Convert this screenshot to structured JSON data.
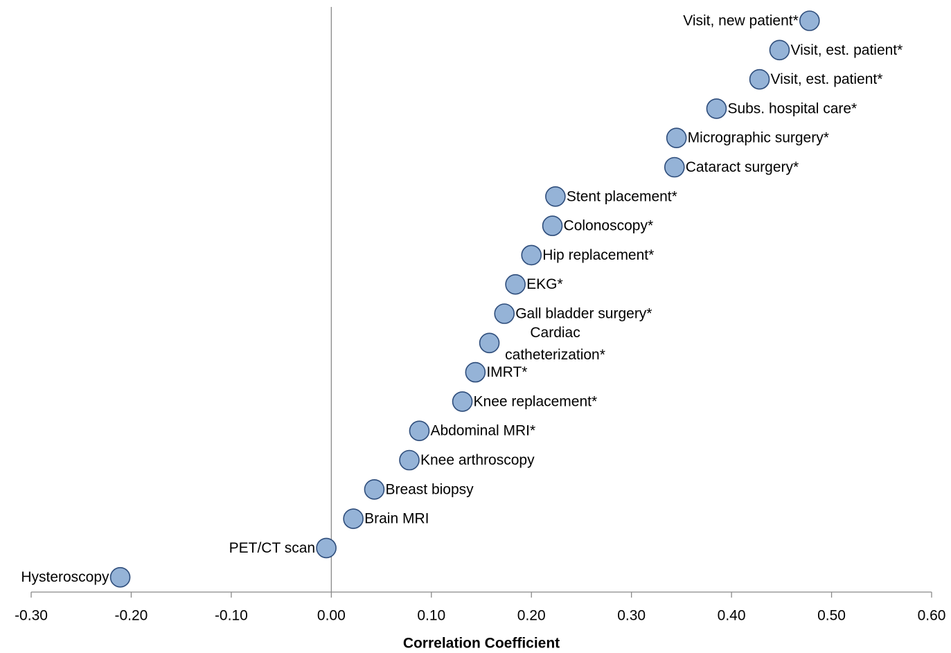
{
  "chart_data": {
    "type": "dot",
    "x_label": "Correlation Coefficient",
    "categories": [
      "Visit, new patient*",
      "Visit, est. patient*",
      "Visit, est. patient*",
      "Subs. hospital care*",
      "Micrographic surgery*",
      "Cataract surgery*",
      "Stent placement*",
      "Colonoscopy*",
      "Hip replacement*",
      "EKG*",
      "Gall bladder surgery*",
      "Cardiac catheterization*",
      "IMRT*",
      "Knee replacement*",
      "Abdominal MRI*",
      "Knee arthroscopy",
      "Breast biopsy",
      "Brain MRI",
      "PET/CT scan",
      "Hysteroscopy"
    ],
    "values": [
      0.478,
      0.448,
      0.428,
      0.385,
      0.345,
      0.343,
      0.224,
      0.221,
      0.2,
      0.184,
      0.173,
      0.158,
      0.144,
      0.131,
      0.088,
      0.078,
      0.043,
      0.022,
      -0.005,
      -0.211
    ],
    "color": "#95b3d7",
    "xlim": [
      -0.3,
      0.6
    ],
    "xticks": [
      {
        "value": -0.3,
        "label": "-0.30"
      },
      {
        "value": -0.2,
        "label": "-0.20"
      },
      {
        "value": -0.1,
        "label": "-0.10"
      },
      {
        "value": 0,
        "label": "0.00"
      },
      {
        "value": 0.1,
        "label": "0.10"
      },
      {
        "value": 0.2,
        "label": "0.20"
      },
      {
        "value": 0.3,
        "label": "0.30"
      },
      {
        "value": 0.4,
        "label": "0.40"
      },
      {
        "value": 0.5,
        "label": "0.50"
      },
      {
        "value": 0.6,
        "label": "0.60"
      }
    ]
  }
}
